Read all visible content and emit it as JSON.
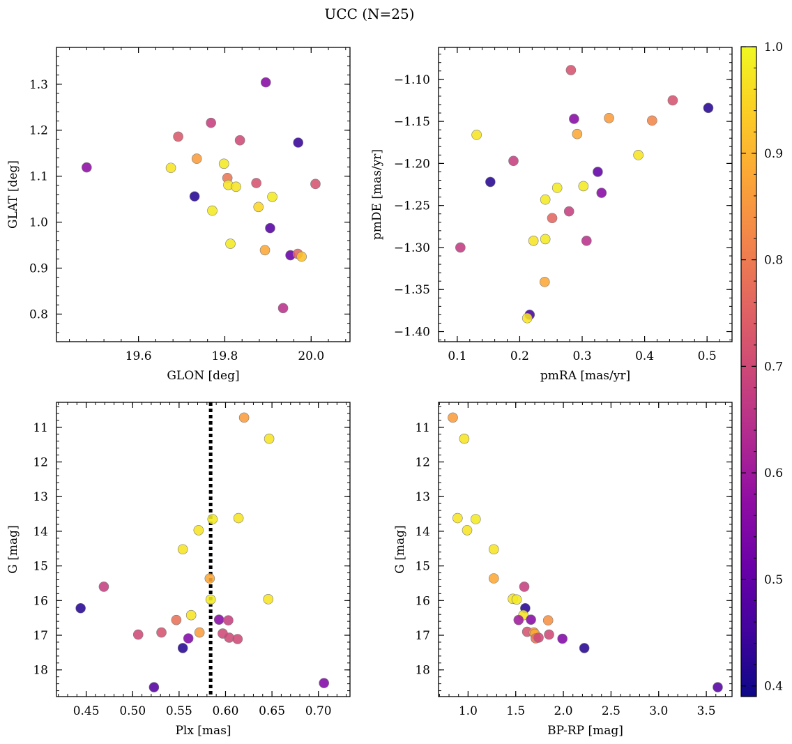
{
  "title": "UCC (N=25)",
  "colorbar": {
    "range": [
      0.39,
      1.0
    ],
    "ticks": [
      0.4,
      0.5,
      0.6,
      0.7,
      0.8,
      0.9,
      1.0
    ],
    "tick_labels": [
      "0.4",
      "0.5",
      "0.6",
      "0.7",
      "0.8",
      "0.9",
      "1.0"
    ],
    "colormap": "plasma"
  },
  "chart_data": [
    {
      "id": "glon-glat",
      "type": "scatter",
      "xlabel": "GLON [deg]",
      "ylabel": "GLAT [deg]",
      "xlim": [
        19.41,
        20.09
      ],
      "ylim": [
        0.74,
        1.38
      ],
      "xticks": [
        19.6,
        19.8,
        20.0
      ],
      "xtick_labels": [
        "19.6",
        "19.8",
        "20.0"
      ],
      "yticks": [
        0.8,
        0.9,
        1.0,
        1.1,
        1.2,
        1.3
      ],
      "ytick_labels": [
        "0.8",
        "0.9",
        "1.0",
        "1.1",
        "1.2",
        "1.3"
      ],
      "y_inverted": false,
      "x_minor_step": 0.04,
      "y_minor_step": 0.02,
      "points": [
        {
          "x": 19.48,
          "y": 1.119,
          "c": 0.57
        },
        {
          "x": 19.692,
          "y": 1.186,
          "c": 0.73
        },
        {
          "x": 19.675,
          "y": 1.118,
          "c": 0.97
        },
        {
          "x": 19.735,
          "y": 1.138,
          "c": 0.86
        },
        {
          "x": 19.768,
          "y": 1.216,
          "c": 0.68
        },
        {
          "x": 19.835,
          "y": 1.178,
          "c": 0.7
        },
        {
          "x": 19.895,
          "y": 1.304,
          "c": 0.56
        },
        {
          "x": 19.97,
          "y": 1.173,
          "c": 0.44
        },
        {
          "x": 19.73,
          "y": 1.056,
          "c": 0.42
        },
        {
          "x": 19.798,
          "y": 1.127,
          "c": 0.98
        },
        {
          "x": 19.806,
          "y": 1.096,
          "c": 0.79
        },
        {
          "x": 19.808,
          "y": 1.081,
          "c": 0.97
        },
        {
          "x": 19.826,
          "y": 1.077,
          "c": 0.97
        },
        {
          "x": 19.771,
          "y": 1.025,
          "c": 0.98
        },
        {
          "x": 19.873,
          "y": 1.085,
          "c": 0.72
        },
        {
          "x": 19.91,
          "y": 1.055,
          "c": 0.98
        },
        {
          "x": 19.878,
          "y": 1.033,
          "c": 0.95
        },
        {
          "x": 20.01,
          "y": 1.083,
          "c": 0.72
        },
        {
          "x": 19.905,
          "y": 0.987,
          "c": 0.48
        },
        {
          "x": 19.813,
          "y": 0.953,
          "c": 0.98
        },
        {
          "x": 19.893,
          "y": 0.939,
          "c": 0.88
        },
        {
          "x": 19.952,
          "y": 0.928,
          "c": 0.51
        },
        {
          "x": 19.969,
          "y": 0.931,
          "c": 0.76
        },
        {
          "x": 19.978,
          "y": 0.925,
          "c": 0.92
        },
        {
          "x": 19.935,
          "y": 0.813,
          "c": 0.65
        }
      ]
    },
    {
      "id": "pmra-pmde",
      "type": "scatter",
      "xlabel": "pmRA [mas/yr]",
      "ylabel": "pmDE [mas/yr]",
      "xlim": [
        0.07,
        0.54
      ],
      "ylim": [
        -1.412,
        -1.062
      ],
      "xticks": [
        0.1,
        0.2,
        0.3,
        0.4,
        0.5
      ],
      "xtick_labels": [
        "0.1",
        "0.2",
        "0.3",
        "0.4",
        "0.5"
      ],
      "yticks": [
        -1.4,
        -1.35,
        -1.3,
        -1.25,
        -1.2,
        -1.15,
        -1.1
      ],
      "ytick_labels": [
        "−1.40",
        "−1.35",
        "−1.30",
        "−1.25",
        "−1.20",
        "−1.15",
        "−1.10"
      ],
      "y_inverted": false,
      "x_minor_step": 0.02,
      "y_minor_step": 0.01,
      "points": [
        {
          "x": 0.282,
          "y": -1.089,
          "c": 0.72
        },
        {
          "x": 0.287,
          "y": -1.147,
          "c": 0.56
        },
        {
          "x": 0.131,
          "y": -1.166,
          "c": 0.97
        },
        {
          "x": 0.292,
          "y": -1.165,
          "c": 0.88
        },
        {
          "x": 0.343,
          "y": -1.146,
          "c": 0.86
        },
        {
          "x": 0.445,
          "y": -1.125,
          "c": 0.72
        },
        {
          "x": 0.502,
          "y": -1.134,
          "c": 0.42
        },
        {
          "x": 0.412,
          "y": -1.149,
          "c": 0.82
        },
        {
          "x": 0.39,
          "y": -1.19,
          "c": 0.97
        },
        {
          "x": 0.19,
          "y": -1.197,
          "c": 0.68
        },
        {
          "x": 0.153,
          "y": -1.222,
          "c": 0.42
        },
        {
          "x": 0.325,
          "y": -1.21,
          "c": 0.5
        },
        {
          "x": 0.26,
          "y": -1.229,
          "c": 0.98
        },
        {
          "x": 0.302,
          "y": -1.227,
          "c": 0.98
        },
        {
          "x": 0.331,
          "y": -1.235,
          "c": 0.56
        },
        {
          "x": 0.241,
          "y": -1.243,
          "c": 0.98
        },
        {
          "x": 0.279,
          "y": -1.257,
          "c": 0.68
        },
        {
          "x": 0.252,
          "y": -1.265,
          "c": 0.76
        },
        {
          "x": 0.105,
          "y": -1.3,
          "c": 0.67
        },
        {
          "x": 0.222,
          "y": -1.292,
          "c": 0.97
        },
        {
          "x": 0.241,
          "y": -1.29,
          "c": 0.98
        },
        {
          "x": 0.307,
          "y": -1.292,
          "c": 0.65
        },
        {
          "x": 0.24,
          "y": -1.341,
          "c": 0.88
        },
        {
          "x": 0.216,
          "y": -1.38,
          "c": 0.46
        },
        {
          "x": 0.212,
          "y": -1.384,
          "c": 0.97
        }
      ]
    },
    {
      "id": "plx-g",
      "type": "scatter",
      "xlabel": "Plx [mas]",
      "ylabel": "G [mag]",
      "xlim": [
        0.418,
        0.734
      ],
      "ylim": [
        18.77,
        10.28
      ],
      "xticks": [
        0.45,
        0.5,
        0.55,
        0.6,
        0.65,
        0.7
      ],
      "xtick_labels": [
        "0.45",
        "0.50",
        "0.55",
        "0.60",
        "0.65",
        "0.70"
      ],
      "yticks": [
        11,
        12,
        13,
        14,
        15,
        16,
        17,
        18
      ],
      "ytick_labels": [
        "11",
        "12",
        "13",
        "14",
        "15",
        "16",
        "17",
        "18"
      ],
      "y_inverted": true,
      "x_minor_step": 0.01,
      "y_minor_step": 0.2,
      "vline": {
        "x": 0.584,
        "style": "dotted",
        "color": "#000000"
      },
      "points": [
        {
          "x": 0.62,
          "y": 10.72,
          "c": 0.86
        },
        {
          "x": 0.647,
          "y": 11.33,
          "c": 0.97
        },
        {
          "x": 0.614,
          "y": 13.62,
          "c": 0.97
        },
        {
          "x": 0.586,
          "y": 13.65,
          "c": 0.98
        },
        {
          "x": 0.571,
          "y": 13.97,
          "c": 0.97
        },
        {
          "x": 0.554,
          "y": 14.52,
          "c": 0.97
        },
        {
          "x": 0.583,
          "y": 15.36,
          "c": 0.88
        },
        {
          "x": 0.469,
          "y": 15.6,
          "c": 0.68
        },
        {
          "x": 0.444,
          "y": 16.22,
          "c": 0.42
        },
        {
          "x": 0.584,
          "y": 15.97,
          "c": 0.98
        },
        {
          "x": 0.646,
          "y": 15.96,
          "c": 0.97
        },
        {
          "x": 0.563,
          "y": 16.42,
          "c": 0.97
        },
        {
          "x": 0.547,
          "y": 16.56,
          "c": 0.78
        },
        {
          "x": 0.593,
          "y": 16.55,
          "c": 0.56
        },
        {
          "x": 0.603,
          "y": 16.57,
          "c": 0.68
        },
        {
          "x": 0.506,
          "y": 16.98,
          "c": 0.7
        },
        {
          "x": 0.531,
          "y": 16.92,
          "c": 0.72
        },
        {
          "x": 0.572,
          "y": 16.92,
          "c": 0.86
        },
        {
          "x": 0.597,
          "y": 16.95,
          "c": 0.7
        },
        {
          "x": 0.56,
          "y": 17.09,
          "c": 0.55
        },
        {
          "x": 0.604,
          "y": 17.07,
          "c": 0.7
        },
        {
          "x": 0.613,
          "y": 17.11,
          "c": 0.7
        },
        {
          "x": 0.554,
          "y": 17.37,
          "c": 0.42
        },
        {
          "x": 0.523,
          "y": 18.5,
          "c": 0.48
        },
        {
          "x": 0.706,
          "y": 18.38,
          "c": 0.55
        }
      ]
    },
    {
      "id": "bprp-g",
      "type": "scatter",
      "xlabel": "BP-RP [mag]",
      "ylabel": "G [mag]",
      "xlim": [
        0.69,
        3.77
      ],
      "ylim": [
        18.77,
        10.28
      ],
      "xticks": [
        1.0,
        1.5,
        2.0,
        2.5,
        3.0,
        3.5
      ],
      "xtick_labels": [
        "1.0",
        "1.5",
        "2.0",
        "2.5",
        "3.0",
        "3.5"
      ],
      "yticks": [
        11,
        12,
        13,
        14,
        15,
        16,
        17,
        18
      ],
      "ytick_labels": [
        "11",
        "12",
        "13",
        "14",
        "15",
        "16",
        "17",
        "18"
      ],
      "y_inverted": true,
      "x_minor_step": 0.1,
      "y_minor_step": 0.2,
      "points": [
        {
          "x": 0.84,
          "y": 10.72,
          "c": 0.86
        },
        {
          "x": 0.96,
          "y": 11.33,
          "c": 0.97
        },
        {
          "x": 0.89,
          "y": 13.62,
          "c": 0.97
        },
        {
          "x": 1.08,
          "y": 13.65,
          "c": 0.98
        },
        {
          "x": 0.99,
          "y": 13.97,
          "c": 0.97
        },
        {
          "x": 1.27,
          "y": 14.52,
          "c": 0.97
        },
        {
          "x": 1.27,
          "y": 15.36,
          "c": 0.88
        },
        {
          "x": 1.59,
          "y": 15.6,
          "c": 0.68
        },
        {
          "x": 1.47,
          "y": 15.95,
          "c": 0.97
        },
        {
          "x": 1.51,
          "y": 15.97,
          "c": 0.98
        },
        {
          "x": 1.6,
          "y": 16.22,
          "c": 0.42
        },
        {
          "x": 1.58,
          "y": 16.42,
          "c": 0.97
        },
        {
          "x": 1.53,
          "y": 16.56,
          "c": 0.6
        },
        {
          "x": 1.66,
          "y": 16.55,
          "c": 0.56
        },
        {
          "x": 1.84,
          "y": 16.57,
          "c": 0.84
        },
        {
          "x": 1.62,
          "y": 16.9,
          "c": 0.72
        },
        {
          "x": 1.69,
          "y": 16.92,
          "c": 0.86
        },
        {
          "x": 1.7,
          "y": 16.96,
          "c": 0.88
        },
        {
          "x": 1.85,
          "y": 16.98,
          "c": 0.7
        },
        {
          "x": 1.71,
          "y": 17.09,
          "c": 0.78
        },
        {
          "x": 1.74,
          "y": 17.07,
          "c": 0.7
        },
        {
          "x": 1.99,
          "y": 17.1,
          "c": 0.55
        },
        {
          "x": 2.22,
          "y": 17.37,
          "c": 0.42
        },
        {
          "x": 3.62,
          "y": 18.5,
          "c": 0.48
        }
      ]
    }
  ]
}
